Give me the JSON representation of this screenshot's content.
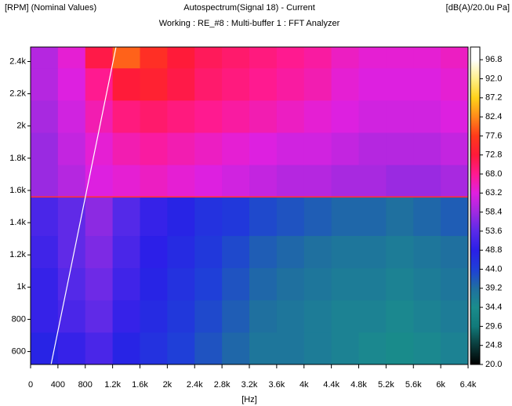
{
  "chart_data": {
    "type": "heatmap",
    "title": "Autospectrum(Signal 18) - Current",
    "subtitle": "Working : RE_#8 : Multi-buffer 1 : FFT Analyzer",
    "y_label": "[RPM] (Nominal Values)",
    "x_label": "[Hz]",
    "colorbar_label": "[dB(A)/20.0u Pa]",
    "xlim": [
      0,
      6400
    ],
    "ylim": [
      520,
      2490
    ],
    "clim": [
      20,
      100
    ],
    "xticks": [
      0,
      400,
      800,
      {
        "value": 1200,
        "label": "1.2k"
      },
      {
        "value": 1600,
        "label": "1.6k"
      },
      {
        "value": 2000,
        "label": "2k"
      },
      {
        "value": 2400,
        "label": "2.4k"
      },
      {
        "value": 2800,
        "label": "2.8k"
      },
      {
        "value": 3200,
        "label": "3.2k"
      },
      {
        "value": 3600,
        "label": "3.6k"
      },
      {
        "value": 4000,
        "label": "4k"
      },
      {
        "value": 4400,
        "label": "4.4k"
      },
      {
        "value": 4800,
        "label": "4.8k"
      },
      {
        "value": 5200,
        "label": "5.2k"
      },
      {
        "value": 5600,
        "label": "5.6k"
      },
      {
        "value": 6000,
        "label": "6k"
      },
      {
        "value": 6400,
        "label": "6.4k"
      }
    ],
    "yticks": [
      600,
      800,
      {
        "value": 1000,
        "label": "1k"
      },
      {
        "value": 1200,
        "label": "1.2k"
      },
      {
        "value": 1400,
        "label": "1.4k"
      },
      {
        "value": 1600,
        "label": "1.6k"
      },
      {
        "value": 1800,
        "label": "1.8k"
      },
      {
        "value": 2000,
        "label": "2k"
      },
      {
        "value": 2200,
        "label": "2.2k"
      },
      {
        "value": 2400,
        "label": "2.4k"
      }
    ],
    "cticks": [
      {
        "value": 20,
        "label": "20.0"
      },
      24.8,
      29.6,
      34.4,
      39.2,
      {
        "value": 44,
        "label": "44.0"
      },
      48.8,
      53.6,
      58.4,
      63.2,
      {
        "value": 68,
        "label": "68.0"
      },
      72.8,
      77.6,
      82.4,
      87.2,
      {
        "value": 92,
        "label": "92.0"
      },
      96.8
    ],
    "colorbar_colors": [
      "#000000",
      "#0a3a3a",
      "#117a7a",
      "#1a8c8c",
      "#1f6fa0",
      "#1f3fd8",
      "#2a1fe8",
      "#5a2ae8",
      "#a02ae0",
      "#e020e0",
      "#ff1a90",
      "#ff1a3a",
      "#ff3a1a",
      "#ff8a1a",
      "#ffd21a",
      "#fff08a",
      "#ffffff"
    ],
    "x_bins": [
      0,
      400,
      800,
      1200,
      1600,
      2000,
      2400,
      2800,
      3200,
      3600,
      4000,
      4400,
      4800,
      5200,
      5600,
      6000,
      6400
    ],
    "y_bins": [
      520,
      720,
      920,
      1120,
      1320,
      1560,
      1760,
      1960,
      2160,
      2360,
      2490
    ],
    "values": [
      [
        48,
        50,
        52,
        48,
        46,
        44,
        42,
        40,
        38,
        38,
        37,
        36,
        35,
        34,
        35,
        36
      ],
      [
        50,
        52,
        54,
        50,
        47,
        45,
        43,
        41,
        39,
        38,
        37,
        36,
        36,
        35,
        36,
        37
      ],
      [
        50,
        53,
        55,
        51,
        48,
        46,
        44,
        42,
        40,
        39,
        38,
        37,
        37,
        36,
        37,
        38
      ],
      [
        51,
        54,
        56,
        52,
        49,
        47,
        45,
        43,
        41,
        40,
        39,
        38,
        38,
        37,
        38,
        39
      ],
      [
        52,
        54,
        57,
        53,
        50,
        48,
        46,
        45,
        43,
        42,
        41,
        40,
        40,
        39,
        40,
        41
      ],
      [
        58,
        60,
        63,
        64,
        65,
        64,
        63,
        62,
        61,
        60,
        60,
        59,
        59,
        58,
        58,
        59
      ],
      [
        58,
        61,
        64,
        66,
        67,
        66,
        65,
        64,
        63,
        62,
        62,
        61,
        60,
        60,
        60,
        61
      ],
      [
        59,
        62,
        66,
        69,
        70,
        69,
        68,
        67,
        66,
        65,
        64,
        63,
        62,
        62,
        62,
        63
      ],
      [
        60,
        63,
        68,
        73,
        74,
        72,
        70,
        69,
        68,
        67,
        66,
        64,
        63,
        63,
        63,
        64
      ],
      [
        60,
        64,
        72,
        80,
        76,
        73,
        71,
        70,
        69,
        68,
        67,
        65,
        64,
        64,
        64,
        65
      ]
    ],
    "order_line": {
      "x": [
        300,
        1250
      ],
      "y": [
        520,
        2490
      ],
      "color": "#ffffff"
    },
    "reference_rpm": 1560,
    "reference_color": "#ff3030"
  }
}
